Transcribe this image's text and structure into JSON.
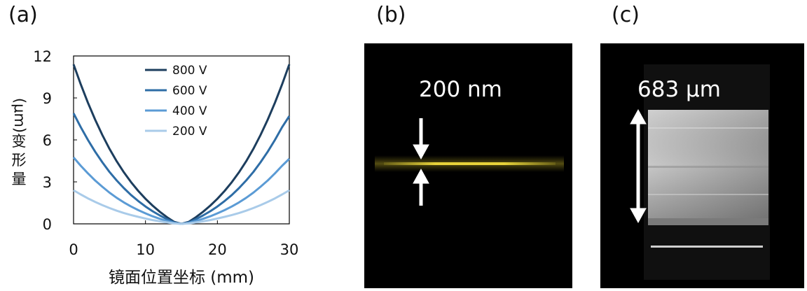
{
  "panels": {
    "a": {
      "label": "(a)"
    },
    "b": {
      "label": "(b)",
      "annotation": "200 nm"
    },
    "c": {
      "label": "(c)",
      "annotation": "683 μm"
    }
  },
  "colors": {
    "s800": "#1d3e5e",
    "s600": "#2e6da6",
    "s400": "#5b9bd5",
    "s200": "#a9cbe9",
    "beam": "#e6d23a",
    "arrow": "#ffffff"
  },
  "chart_data": {
    "type": "line",
    "title": "",
    "xlabel": "镜面位置坐标 (mm)",
    "ylabel_chars": [
      "变",
      "形",
      "量"
    ],
    "ylabel_unit": "(μm)",
    "xlim": [
      0,
      30
    ],
    "ylim": [
      0,
      12
    ],
    "xticks": [
      0,
      10,
      20,
      30
    ],
    "yticks": [
      0,
      3,
      6,
      9,
      12
    ],
    "legend_position": "top-center",
    "x": [
      0,
      1,
      2,
      3,
      4,
      5,
      6,
      7,
      8,
      9,
      10,
      11,
      12,
      13,
      14,
      15,
      16,
      17,
      18,
      19,
      20,
      21,
      22,
      23,
      24,
      25,
      26,
      27,
      28,
      29,
      30
    ],
    "series": [
      {
        "name": "800 V",
        "color_key": "s800",
        "values": [
          11.4,
          9.97,
          8.66,
          7.45,
          6.35,
          5.36,
          4.47,
          3.68,
          2.98,
          2.35,
          1.79,
          1.3,
          0.86,
          0.47,
          0.14,
          0.0,
          0.14,
          0.47,
          0.86,
          1.3,
          1.79,
          2.35,
          2.98,
          3.68,
          4.47,
          5.36,
          6.35,
          7.45,
          8.66,
          9.97,
          11.4
        ]
      },
      {
        "name": "600 V",
        "color_key": "s600",
        "values": [
          7.9,
          6.91,
          6.0,
          5.16,
          4.4,
          3.71,
          3.1,
          2.55,
          2.06,
          1.63,
          1.24,
          0.9,
          0.6,
          0.33,
          0.1,
          0.0,
          0.1,
          0.33,
          0.6,
          0.9,
          1.24,
          1.63,
          2.06,
          2.55,
          3.1,
          3.71,
          4.4,
          5.16,
          6.0,
          6.91,
          7.7
        ]
      },
      {
        "name": "400 V",
        "color_key": "s400",
        "values": [
          4.75,
          4.15,
          3.61,
          3.1,
          2.65,
          2.23,
          1.86,
          1.53,
          1.24,
          0.98,
          0.75,
          0.54,
          0.36,
          0.2,
          0.06,
          0.0,
          0.06,
          0.2,
          0.36,
          0.54,
          0.75,
          0.98,
          1.24,
          1.53,
          1.86,
          2.23,
          2.65,
          3.1,
          3.61,
          4.15,
          4.65
        ]
      },
      {
        "name": "200 V",
        "color_key": "s200",
        "values": [
          2.4,
          2.1,
          1.82,
          1.57,
          1.34,
          1.13,
          0.94,
          0.77,
          0.63,
          0.5,
          0.38,
          0.27,
          0.18,
          0.1,
          0.03,
          0.0,
          0.03,
          0.1,
          0.18,
          0.27,
          0.38,
          0.5,
          0.63,
          0.77,
          0.94,
          1.13,
          1.34,
          1.57,
          1.82,
          2.1,
          2.4
        ]
      }
    ]
  }
}
